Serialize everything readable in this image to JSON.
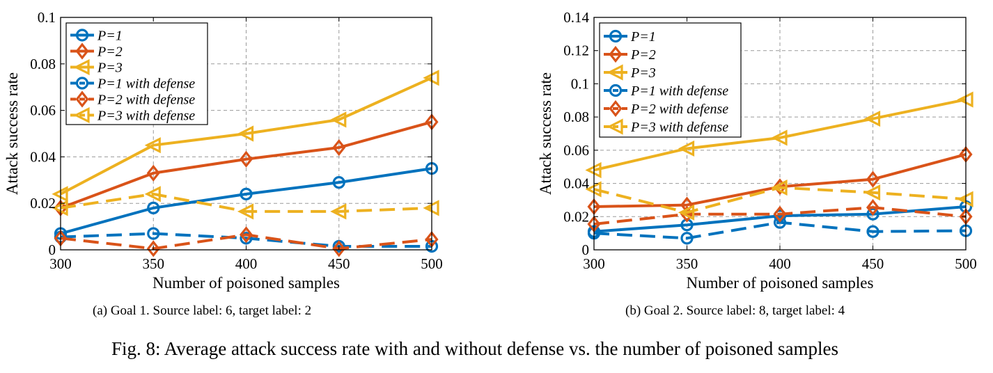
{
  "figure": {
    "caption": "Fig. 8: Average attack success rate with and without defense vs. the number of poisoned samples"
  },
  "colors": {
    "blue": "#0072BD",
    "orange": "#D95319",
    "yellow": "#EDB120",
    "grid": "#9a9a9a"
  },
  "chart_data": [
    {
      "id": "a",
      "type": "line",
      "caption": "(a) Goal 1. Source label: 6, target label: 2",
      "xlabel": "Number of poisoned samples",
      "ylabel": "Attack success rate",
      "x": [
        300,
        350,
        400,
        450,
        500
      ],
      "xlim": [
        300,
        500
      ],
      "ylim": [
        0,
        0.1
      ],
      "xticks": [
        "300",
        "350",
        "400",
        "450",
        "500"
      ],
      "yticks": [
        "0",
        "0.02",
        "0.04",
        "0.06",
        "0.08",
        "0.1"
      ],
      "ytick_values": [
        0,
        0.02,
        0.04,
        0.06,
        0.08,
        0.1
      ],
      "grid": true,
      "legend_position": "top-left",
      "series": [
        {
          "name": "P=1",
          "color": "#0072BD",
          "marker": "circle",
          "style": "solid",
          "values": [
            0.007,
            0.018,
            0.024,
            0.029,
            0.035
          ]
        },
        {
          "name": "P=2",
          "color": "#D95319",
          "marker": "diamond",
          "style": "solid",
          "values": [
            0.018,
            0.033,
            0.039,
            0.044,
            0.055
          ]
        },
        {
          "name": "P=3",
          "color": "#EDB120",
          "marker": "triangle-left",
          "style": "solid",
          "values": [
            0.024,
            0.045,
            0.05,
            0.056,
            0.074
          ]
        },
        {
          "name": "P=1 with defense",
          "color": "#0072BD",
          "marker": "circle",
          "style": "dashed",
          "values": [
            0.0055,
            0.007,
            0.005,
            0.0015,
            0.0015
          ]
        },
        {
          "name": "P=2 with defense",
          "color": "#D95319",
          "marker": "diamond",
          "style": "dashed",
          "values": [
            0.005,
            0.0005,
            0.0065,
            0.0005,
            0.0045
          ]
        },
        {
          "name": "P=3 with defense",
          "color": "#EDB120",
          "marker": "triangle-left",
          "style": "dashed",
          "values": [
            0.018,
            0.024,
            0.0165,
            0.0165,
            0.018
          ]
        }
      ]
    },
    {
      "id": "b",
      "type": "line",
      "caption": "(b) Goal 2. Source label: 8, target label: 4",
      "xlabel": "Number of poisoned samples",
      "ylabel": "Attack success rate",
      "x": [
        300,
        350,
        400,
        450,
        500
      ],
      "xlim": [
        300,
        500
      ],
      "ylim": [
        0,
        0.14
      ],
      "xticks": [
        "300",
        "350",
        "400",
        "450",
        "500"
      ],
      "yticks": [
        "0",
        "0.02",
        "0.04",
        "0.06",
        "0.08",
        "0.1",
        "0.12",
        "0.14"
      ],
      "ytick_values": [
        0,
        0.02,
        0.04,
        0.06,
        0.08,
        0.1,
        0.12,
        0.14
      ],
      "grid": true,
      "legend_position": "top-left",
      "series": [
        {
          "name": "P=1",
          "color": "#0072BD",
          "marker": "circle",
          "style": "solid",
          "values": [
            0.011,
            0.015,
            0.0205,
            0.0215,
            0.026
          ]
        },
        {
          "name": "P=2",
          "color": "#D95319",
          "marker": "diamond",
          "style": "solid",
          "values": [
            0.026,
            0.027,
            0.038,
            0.0425,
            0.0575
          ]
        },
        {
          "name": "P=3",
          "color": "#EDB120",
          "marker": "triangle-left",
          "style": "solid",
          "values": [
            0.048,
            0.061,
            0.0675,
            0.079,
            0.0905
          ]
        },
        {
          "name": "P=1 with defense",
          "color": "#0072BD",
          "marker": "circle",
          "style": "dashed",
          "values": [
            0.01,
            0.007,
            0.0165,
            0.011,
            0.0115
          ]
        },
        {
          "name": "P=2 with defense",
          "color": "#D95319",
          "marker": "diamond",
          "style": "dashed",
          "values": [
            0.0155,
            0.0215,
            0.0215,
            0.0255,
            0.02
          ]
        },
        {
          "name": "P=3 with defense",
          "color": "#EDB120",
          "marker": "triangle-left",
          "style": "dashed",
          "values": [
            0.0365,
            0.0225,
            0.0375,
            0.0345,
            0.0305
          ]
        }
      ]
    }
  ]
}
